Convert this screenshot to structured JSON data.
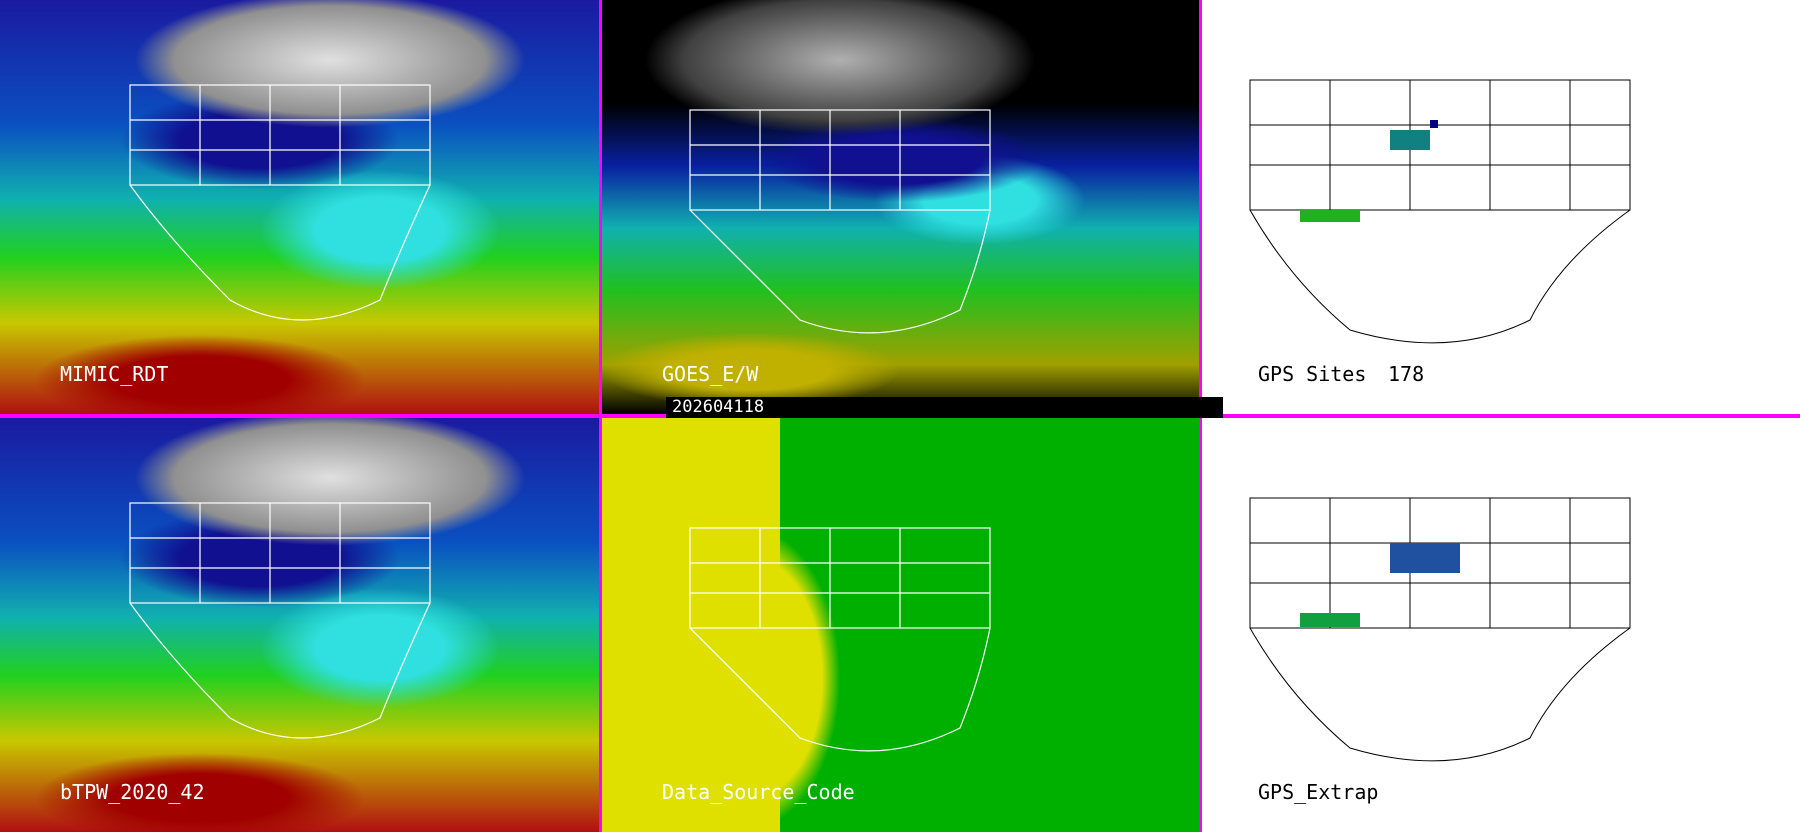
{
  "panels": [
    {
      "label": "MIMIC_RDT"
    },
    {
      "label": "GOES_E/W"
    },
    {
      "label": "GPS Sites",
      "count": "178"
    },
    {
      "label": "bTPW_2020_42"
    },
    {
      "label": "Data_Source_Code"
    },
    {
      "label": "GPS_Extrap"
    }
  ],
  "timestamp": "202604118",
  "colors": {
    "separator": "#ff00ff",
    "map_background": "#ffffff"
  }
}
